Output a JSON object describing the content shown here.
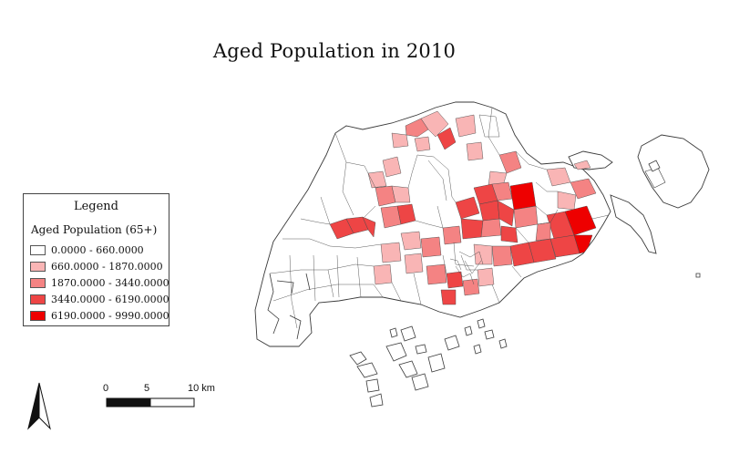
{
  "title": "Aged Population in 2010",
  "legend": {
    "title": "Legend",
    "subtitle": "Aged Population (65+)",
    "classes": [
      {
        "label": "0.0000 - 660.0000",
        "color": "#ffffff"
      },
      {
        "label": "660.0000 - 1870.0000",
        "color": "#f9b5b5"
      },
      {
        "label": "1870.0000 - 3440.0000",
        "color": "#f48383"
      },
      {
        "label": "3440.0000 - 6190.0000",
        "color": "#ee4545"
      },
      {
        "label": "6190.0000 - 9990.0000",
        "color": "#ee0000"
      }
    ]
  },
  "scale_bar": {
    "labels": [
      "0",
      "5",
      "10 km"
    ]
  },
  "north_arrow": {
    "icon": "north-arrow-icon"
  },
  "colors": {
    "outline": "#3a3a3a",
    "class_0": "#ffffff",
    "class_1": "#f9b5b5",
    "class_2": "#f48383",
    "class_3": "#ee4545",
    "class_4": "#ee0000"
  }
}
